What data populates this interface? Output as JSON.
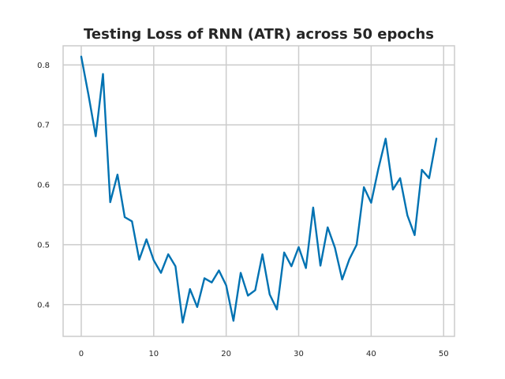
{
  "chart_data": {
    "type": "line",
    "title": "Testing Loss of RNN (ATR) across 50 epochs",
    "xlabel": "",
    "ylabel": "",
    "xlim": [
      -2.5,
      51.5
    ],
    "ylim": [
      0.347,
      0.832
    ],
    "grid": true,
    "x_ticks": [
      0,
      10,
      20,
      30,
      40,
      50
    ],
    "y_ticks": [
      0.4,
      0.5,
      0.6,
      0.7,
      0.8
    ],
    "x_tick_labels": [
      "0",
      "10",
      "20",
      "30",
      "40",
      "50"
    ],
    "y_tick_labels": [
      "0.4",
      "0.5",
      "0.6",
      "0.7",
      "0.8"
    ],
    "series": [
      {
        "color": "#0072b2",
        "x": [
          0,
          1,
          2,
          3,
          4,
          5,
          6,
          7,
          8,
          9,
          10,
          11,
          12,
          13,
          14,
          15,
          16,
          17,
          18,
          19,
          20,
          21,
          22,
          23,
          24,
          25,
          26,
          27,
          28,
          29,
          30,
          31,
          32,
          33,
          34,
          35,
          36,
          37,
          38,
          39,
          40,
          41,
          42,
          43,
          44,
          45,
          46,
          47,
          48,
          49
        ],
        "values": [
          0.814,
          0.75,
          0.681,
          0.785,
          0.571,
          0.617,
          0.546,
          0.539,
          0.475,
          0.509,
          0.474,
          0.453,
          0.484,
          0.464,
          0.37,
          0.426,
          0.396,
          0.444,
          0.437,
          0.457,
          0.432,
          0.373,
          0.453,
          0.415,
          0.424,
          0.484,
          0.417,
          0.392,
          0.487,
          0.464,
          0.496,
          0.461,
          0.562,
          0.465,
          0.529,
          0.495,
          0.442,
          0.476,
          0.5,
          0.596,
          0.57,
          0.627,
          0.677,
          0.592,
          0.611,
          0.549,
          0.516,
          0.625,
          0.611,
          0.677
        ]
      }
    ]
  }
}
